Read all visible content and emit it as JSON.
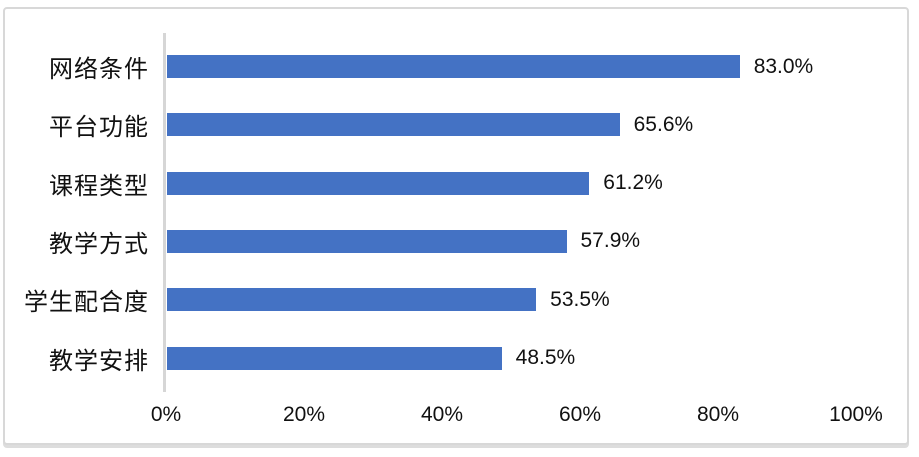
{
  "chart_data": {
    "type": "bar",
    "orientation": "horizontal",
    "title": "",
    "categories": [
      "网络条件",
      "平台功能",
      "课程类型",
      "教学方式",
      "学生配合度",
      "教学安排"
    ],
    "values": [
      83.0,
      65.6,
      61.2,
      57.9,
      53.5,
      48.5
    ],
    "value_labels": [
      "83.0%",
      "65.6%",
      "61.2%",
      "57.9%",
      "53.5%",
      "48.5%"
    ],
    "x_ticks": [
      "0%",
      "20%",
      "40%",
      "60%",
      "80%",
      "100%"
    ],
    "xlim": [
      0,
      100
    ],
    "grid": false,
    "legend": false,
    "bar_color": "#4472C4",
    "axis_line_color": "#D6D6D6",
    "text_color": "#111111",
    "frame_border_color": "#D8D8D8"
  }
}
